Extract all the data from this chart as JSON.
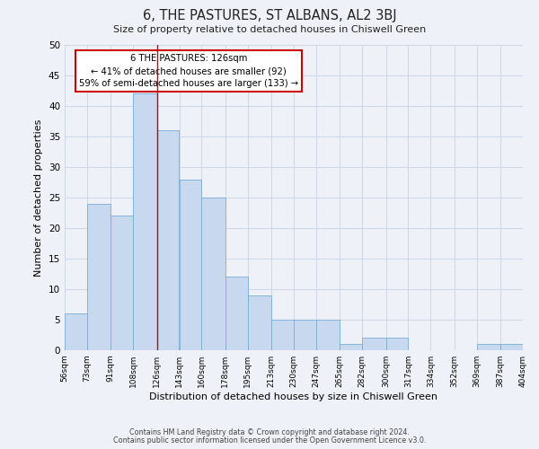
{
  "title": "6, THE PASTURES, ST ALBANS, AL2 3BJ",
  "subtitle": "Size of property relative to detached houses in Chiswell Green",
  "xlabel": "Distribution of detached houses by size in Chiswell Green",
  "ylabel": "Number of detached properties",
  "footer_line1": "Contains HM Land Registry data © Crown copyright and database right 2024.",
  "footer_line2": "Contains public sector information licensed under the Open Government Licence v3.0.",
  "annotation_line1": "6 THE PASTURES: 126sqm",
  "annotation_line2": "← 41% of detached houses are smaller (92)",
  "annotation_line3": "59% of semi-detached houses are larger (133) →",
  "bar_edges": [
    56,
    73,
    91,
    108,
    126,
    143,
    160,
    178,
    195,
    213,
    230,
    247,
    265,
    282,
    300,
    317,
    334,
    352,
    369,
    387,
    404
  ],
  "bar_heights": [
    6,
    24,
    22,
    42,
    36,
    28,
    25,
    12,
    9,
    5,
    5,
    5,
    1,
    2,
    2,
    0,
    0,
    0,
    1,
    1
  ],
  "tick_labels": [
    "56sqm",
    "73sqm",
    "91sqm",
    "108sqm",
    "126sqm",
    "143sqm",
    "160sqm",
    "178sqm",
    "195sqm",
    "213sqm",
    "230sqm",
    "247sqm",
    "265sqm",
    "282sqm",
    "300sqm",
    "317sqm",
    "334sqm",
    "352sqm",
    "369sqm",
    "387sqm",
    "404sqm"
  ],
  "bar_color": "#c8d8ee",
  "bar_edge_color": "#7aadd4",
  "marker_line_color": "#cc0000",
  "marker_value": 126,
  "annotation_box_edge_color": "#cc0000",
  "annotation_box_face_color": "#ffffff",
  "grid_color": "#d0d8e8",
  "background_color": "#eef2f8",
  "ylim": [
    0,
    50
  ],
  "yticks": [
    0,
    5,
    10,
    15,
    20,
    25,
    30,
    35,
    40,
    45,
    50
  ]
}
